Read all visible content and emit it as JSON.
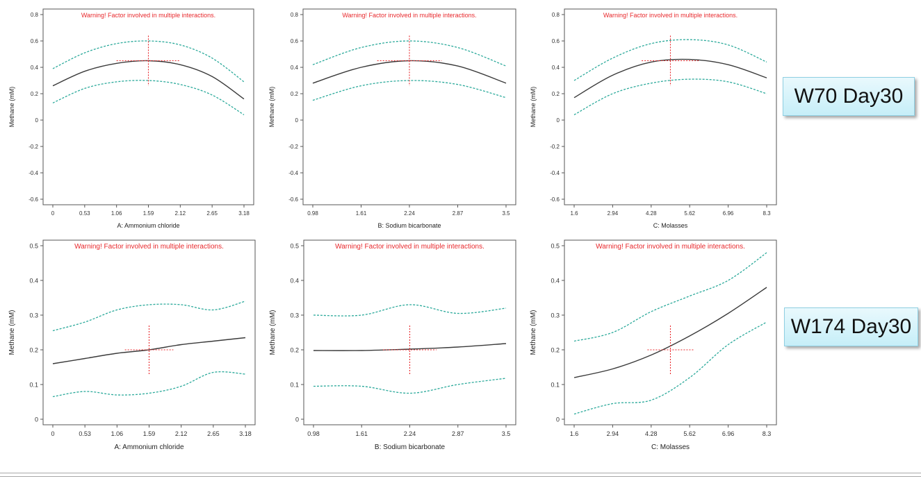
{
  "labels": {
    "top_group": "W70 Day30",
    "bottom_group": "W174 Day30"
  },
  "colors": {
    "fit_line": "#3a3a3a",
    "ci_band": "#2aa99a",
    "warning_text": "#e8282c",
    "crosshair": "#e8282c"
  },
  "chart_data": [
    {
      "type": "line",
      "group": "W70 Day30",
      "annotation": "Warning! Factor involved in multiple interactions.",
      "xlabel": "A: Ammonium chloride",
      "ylabel": "Methane (mM)",
      "xlim": [
        0,
        3.18
      ],
      "ylim": [
        -0.6,
        0.8
      ],
      "xticks": [
        0,
        0.53,
        1.06,
        1.59,
        2.12,
        2.65,
        3.18
      ],
      "xtick_labels": [
        "0",
        "0.53",
        "1.06",
        "1.59",
        "2.12",
        "2.65",
        "3.18"
      ],
      "yticks": [
        -0.6,
        -0.4,
        -0.2,
        0,
        0.2,
        0.4,
        0.6,
        0.8
      ],
      "ytick_labels": [
        "-0.6",
        "-0.4",
        "-0.2",
        "0",
        "0.2",
        "0.4",
        "0.6",
        "0.8"
      ],
      "crosshair": {
        "x": 1.59,
        "y": 0.45,
        "x_half_span": 0.53,
        "y_half_span": 0.19
      },
      "x": [
        0,
        0.53,
        1.06,
        1.59,
        2.12,
        2.65,
        3.18
      ],
      "series": [
        {
          "name": "prediction",
          "values": [
            0.26,
            0.37,
            0.43,
            0.45,
            0.42,
            0.33,
            0.16
          ]
        },
        {
          "name": "upper 95% CI",
          "values": [
            0.39,
            0.51,
            0.58,
            0.6,
            0.57,
            0.47,
            0.29
          ]
        },
        {
          "name": "lower 95% CI",
          "values": [
            0.13,
            0.24,
            0.29,
            0.3,
            0.27,
            0.19,
            0.04
          ]
        }
      ]
    },
    {
      "type": "line",
      "group": "W70 Day30",
      "annotation": "Warning! Factor involved in multiple interactions.",
      "xlabel": "B: Sodium bicarbonate",
      "ylabel": "Methane (mM)",
      "xlim": [
        0.98,
        3.5
      ],
      "ylim": [
        -0.6,
        0.8
      ],
      "xticks": [
        0.98,
        1.61,
        2.24,
        2.87,
        3.5
      ],
      "xtick_labels": [
        "0.98",
        "1.61",
        "2.24",
        "2.87",
        "3.5"
      ],
      "yticks": [
        -0.6,
        -0.4,
        -0.2,
        0,
        0.2,
        0.4,
        0.6,
        0.8
      ],
      "ytick_labels": [
        "-0.6",
        "-0.4",
        "-0.2",
        "0",
        "0.2",
        "0.4",
        "0.6",
        "0.8"
      ],
      "crosshair": {
        "x": 2.24,
        "y": 0.45,
        "x_half_span": 0.42,
        "y_half_span": 0.19
      },
      "x": [
        0.98,
        1.61,
        2.24,
        2.87,
        3.5
      ],
      "series": [
        {
          "name": "prediction",
          "values": [
            0.28,
            0.4,
            0.45,
            0.41,
            0.28
          ]
        },
        {
          "name": "upper 95% CI",
          "values": [
            0.42,
            0.55,
            0.6,
            0.55,
            0.41
          ]
        },
        {
          "name": "lower 95% CI",
          "values": [
            0.15,
            0.26,
            0.3,
            0.27,
            0.17
          ]
        }
      ]
    },
    {
      "type": "line",
      "group": "W70 Day30",
      "annotation": "Warning! Factor involved in multiple interactions.",
      "xlabel": "C: Molasses",
      "ylabel": "Methane (mM)",
      "xlim": [
        1.6,
        8.3
      ],
      "ylim": [
        -0.6,
        0.8
      ],
      "xticks": [
        1.6,
        2.94,
        4.28,
        5.62,
        6.96,
        8.3
      ],
      "xtick_labels": [
        "1.6",
        "2.94",
        "4.28",
        "5.62",
        "6.96",
        "8.3"
      ],
      "yticks": [
        -0.6,
        -0.4,
        -0.2,
        0,
        0.2,
        0.4,
        0.6,
        0.8
      ],
      "ytick_labels": [
        "-0.6",
        "-0.4",
        "-0.2",
        "0",
        "0.2",
        "0.4",
        "0.6",
        "0.8"
      ],
      "crosshair": {
        "x": 4.95,
        "y": 0.45,
        "x_half_span": 1.0,
        "y_half_span": 0.19
      },
      "x": [
        1.6,
        2.94,
        4.28,
        5.62,
        6.96,
        8.3
      ],
      "series": [
        {
          "name": "prediction",
          "values": [
            0.17,
            0.34,
            0.44,
            0.46,
            0.42,
            0.32
          ]
        },
        {
          "name": "upper 95% CI",
          "values": [
            0.3,
            0.47,
            0.58,
            0.61,
            0.57,
            0.44
          ]
        },
        {
          "name": "lower 95% CI",
          "values": [
            0.04,
            0.2,
            0.28,
            0.31,
            0.29,
            0.2
          ]
        }
      ]
    },
    {
      "type": "line",
      "group": "W174 Day30",
      "annotation": "Warning! Factor involved in multiple interactions.",
      "xlabel": "A: Ammonium chloride",
      "ylabel": "Methane (mM)",
      "xlim": [
        0,
        3.18
      ],
      "ylim": [
        0,
        0.5
      ],
      "xticks": [
        0,
        0.53,
        1.06,
        1.59,
        2.12,
        2.65,
        3.18
      ],
      "xtick_labels": [
        "0",
        "0.53",
        "1.06",
        "1.59",
        "2.12",
        "2.65",
        "3.18"
      ],
      "yticks": [
        0,
        0.1,
        0.2,
        0.3,
        0.4,
        0.5
      ],
      "ytick_labels": [
        "0",
        "0.1",
        "0.2",
        "0.3",
        "0.4",
        "0.5"
      ],
      "crosshair": {
        "x": 1.59,
        "y": 0.2,
        "x_half_span": 0.4,
        "y_half_span": 0.07
      },
      "x": [
        0,
        0.53,
        1.06,
        1.59,
        2.12,
        2.65,
        3.18
      ],
      "series": [
        {
          "name": "prediction",
          "values": [
            0.16,
            0.175,
            0.19,
            0.2,
            0.215,
            0.225,
            0.235
          ]
        },
        {
          "name": "upper 95% CI",
          "values": [
            0.255,
            0.28,
            0.315,
            0.33,
            0.33,
            0.315,
            0.34
          ]
        },
        {
          "name": "lower 95% CI",
          "values": [
            0.065,
            0.08,
            0.07,
            0.075,
            0.095,
            0.135,
            0.13
          ]
        }
      ]
    },
    {
      "type": "line",
      "group": "W174 Day30",
      "annotation": "Warning! Factor involved in multiple interactions.",
      "xlabel": "B: Sodium bicarbonate",
      "ylabel": "Methane (mM)",
      "xlim": [
        0.98,
        3.5
      ],
      "ylim": [
        0,
        0.5
      ],
      "xticks": [
        0.98,
        1.61,
        2.24,
        2.87,
        3.5
      ],
      "xtick_labels": [
        "0.98",
        "1.61",
        "2.24",
        "2.87",
        "3.5"
      ],
      "yticks": [
        0,
        0.1,
        0.2,
        0.3,
        0.4,
        0.5
      ],
      "ytick_labels": [
        "0",
        "0.1",
        "0.2",
        "0.3",
        "0.4",
        "0.5"
      ],
      "crosshair": {
        "x": 2.24,
        "y": 0.2,
        "x_half_span": 0.35,
        "y_half_span": 0.07
      },
      "x": [
        0.98,
        1.61,
        2.24,
        2.87,
        3.5
      ],
      "series": [
        {
          "name": "prediction",
          "values": [
            0.198,
            0.198,
            0.202,
            0.208,
            0.218
          ]
        },
        {
          "name": "upper 95% CI",
          "values": [
            0.3,
            0.3,
            0.33,
            0.305,
            0.32
          ]
        },
        {
          "name": "lower 95% CI",
          "values": [
            0.095,
            0.095,
            0.075,
            0.1,
            0.118
          ]
        }
      ]
    },
    {
      "type": "line",
      "group": "W174 Day30",
      "annotation": "Warning! Factor involved in multiple interactions.",
      "xlabel": "C: Molasses",
      "ylabel": "Methane (mM)",
      "xlim": [
        1.6,
        8.3
      ],
      "ylim": [
        0,
        0.5
      ],
      "xticks": [
        1.6,
        2.94,
        4.28,
        5.62,
        6.96,
        8.3
      ],
      "xtick_labels": [
        "1.6",
        "2.94",
        "4.28",
        "5.62",
        "6.96",
        "8.3"
      ],
      "yticks": [
        0,
        0.1,
        0.2,
        0.3,
        0.4,
        0.5
      ],
      "ytick_labels": [
        "0",
        "0.1",
        "0.2",
        "0.3",
        "0.4",
        "0.5"
      ],
      "crosshair": {
        "x": 4.95,
        "y": 0.2,
        "x_half_span": 0.8,
        "y_half_span": 0.07
      },
      "x": [
        1.6,
        2.94,
        4.28,
        5.62,
        6.96,
        8.3
      ],
      "series": [
        {
          "name": "prediction",
          "values": [
            0.12,
            0.145,
            0.185,
            0.24,
            0.305,
            0.38
          ]
        },
        {
          "name": "upper 95% CI",
          "values": [
            0.225,
            0.25,
            0.31,
            0.355,
            0.4,
            0.48
          ]
        },
        {
          "name": "lower 95% CI",
          "values": [
            0.015,
            0.045,
            0.055,
            0.12,
            0.215,
            0.28
          ]
        }
      ]
    }
  ]
}
